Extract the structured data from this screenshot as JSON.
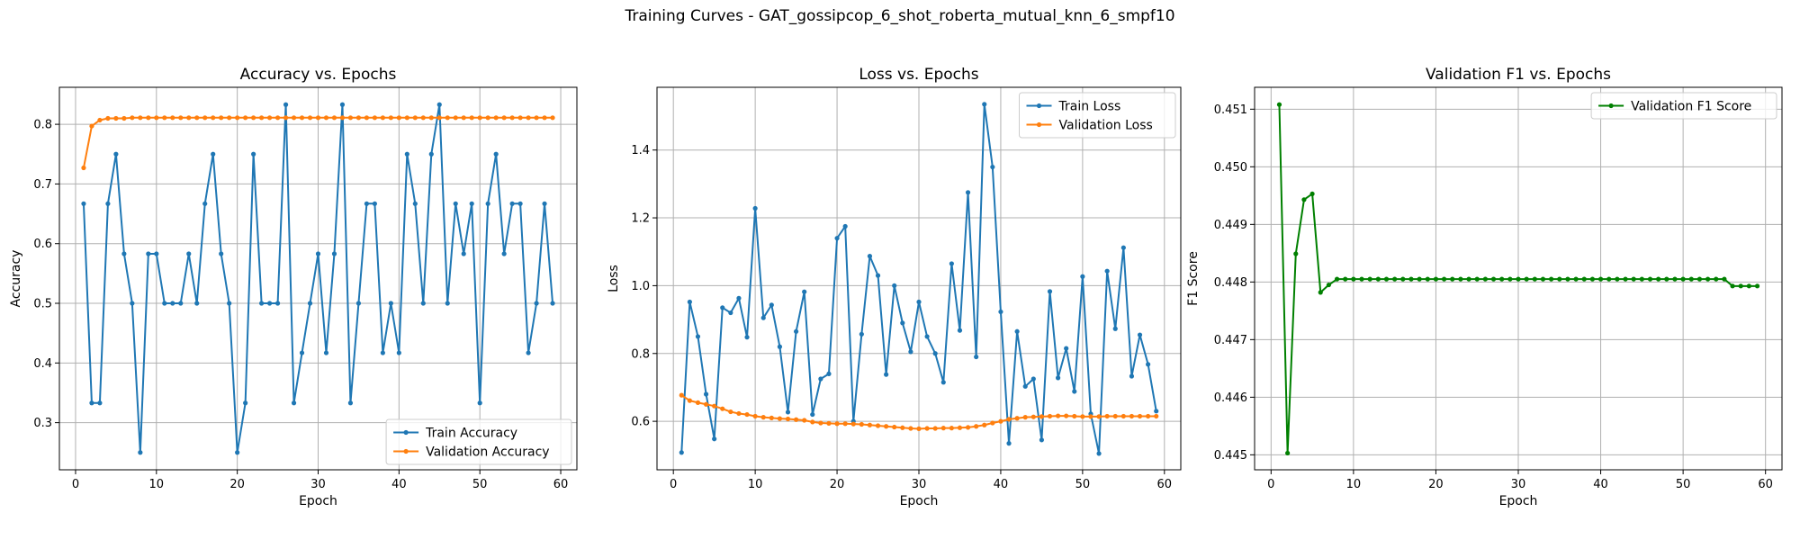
{
  "suptitle": "Training Curves - GAT_gossipcop_6_shot_roberta_mutual_knn_6_smpf10",
  "chart_data": [
    {
      "type": "line",
      "title": "Accuracy vs. Epochs",
      "xlabel": "Epoch",
      "ylabel": "Accuracy",
      "xlim": [
        -2,
        62
      ],
      "ylim": [
        0.221,
        0.862
      ],
      "xticks": [
        0,
        10,
        20,
        30,
        40,
        50,
        60
      ],
      "yticks": [
        0.3,
        0.4,
        0.5,
        0.6,
        0.7,
        0.8
      ],
      "ytick_decimals": 1,
      "grid": true,
      "legend": "lower-right",
      "x_start": 1,
      "series": [
        {
          "name": "Train Accuracy",
          "color": "#1f77b4",
          "values": [
            0.667,
            0.333,
            0.333,
            0.667,
            0.75,
            0.583,
            0.5,
            0.25,
            0.583,
            0.583,
            0.5,
            0.5,
            0.5,
            0.583,
            0.5,
            0.667,
            0.75,
            0.583,
            0.5,
            0.25,
            0.333,
            0.75,
            0.5,
            0.5,
            0.5,
            0.833,
            0.333,
            0.417,
            0.5,
            0.583,
            0.417,
            0.583,
            0.833,
            0.333,
            0.5,
            0.667,
            0.667,
            0.417,
            0.5,
            0.417,
            0.75,
            0.667,
            0.5,
            0.75,
            0.833,
            0.5,
            0.667,
            0.583,
            0.667,
            0.333,
            0.667,
            0.75,
            0.583,
            0.667,
            0.667,
            0.417,
            0.5,
            0.667,
            0.5
          ]
        },
        {
          "name": "Validation Accuracy",
          "color": "#ff7f0e",
          "values": [
            0.727,
            0.797,
            0.807,
            0.81,
            0.81,
            0.81,
            0.811,
            0.811,
            0.811,
            0.811,
            0.811,
            0.811,
            0.811,
            0.811,
            0.811,
            0.811,
            0.811,
            0.811,
            0.811,
            0.811,
            0.811,
            0.811,
            0.811,
            0.811,
            0.811,
            0.811,
            0.811,
            0.811,
            0.811,
            0.811,
            0.811,
            0.811,
            0.811,
            0.811,
            0.811,
            0.811,
            0.811,
            0.811,
            0.811,
            0.811,
            0.811,
            0.811,
            0.811,
            0.811,
            0.811,
            0.811,
            0.811,
            0.811,
            0.811,
            0.811,
            0.811,
            0.811,
            0.811,
            0.811,
            0.811,
            0.811,
            0.811,
            0.811,
            0.811
          ]
        }
      ]
    },
    {
      "type": "line",
      "title": "Loss vs. Epochs",
      "xlabel": "Epoch",
      "ylabel": "Loss",
      "xlim": [
        -2,
        62
      ],
      "ylim": [
        0.457,
        1.585
      ],
      "xticks": [
        0,
        10,
        20,
        30,
        40,
        50,
        60
      ],
      "yticks": [
        0.6,
        0.8,
        1.0,
        1.2,
        1.4
      ],
      "ytick_decimals": 1,
      "grid": true,
      "legend": "upper-right",
      "x_start": 1,
      "series": [
        {
          "name": "Train Loss",
          "color": "#1f77b4",
          "values": [
            0.508,
            0.952,
            0.85,
            0.68,
            0.548,
            0.935,
            0.92,
            0.963,
            0.848,
            1.228,
            0.905,
            0.943,
            0.82,
            0.627,
            0.865,
            0.982,
            0.62,
            0.725,
            0.74,
            1.14,
            1.175,
            0.6,
            0.857,
            1.087,
            1.03,
            0.738,
            1.0,
            0.89,
            0.805,
            0.952,
            0.85,
            0.8,
            0.715,
            1.065,
            0.868,
            1.275,
            0.79,
            1.535,
            1.35,
            0.923,
            0.535,
            0.865,
            0.703,
            0.725,
            0.545,
            0.983,
            0.728,
            0.815,
            0.688,
            1.027,
            0.622,
            0.505,
            1.043,
            0.873,
            1.112,
            0.733,
            0.855,
            0.768,
            0.63
          ]
        },
        {
          "name": "Validation Loss",
          "color": "#ff7f0e",
          "values": [
            0.677,
            0.661,
            0.655,
            0.65,
            0.645,
            0.637,
            0.628,
            0.623,
            0.62,
            0.615,
            0.612,
            0.61,
            0.608,
            0.607,
            0.605,
            0.603,
            0.598,
            0.595,
            0.594,
            0.593,
            0.593,
            0.592,
            0.591,
            0.589,
            0.587,
            0.585,
            0.583,
            0.581,
            0.579,
            0.578,
            0.579,
            0.579,
            0.58,
            0.58,
            0.581,
            0.582,
            0.585,
            0.589,
            0.595,
            0.6,
            0.606,
            0.609,
            0.612,
            0.613,
            0.614,
            0.615,
            0.616,
            0.616,
            0.615,
            0.614,
            0.614,
            0.614,
            0.615,
            0.615,
            0.615,
            0.615,
            0.615,
            0.615,
            0.615
          ]
        }
      ]
    },
    {
      "type": "line",
      "title": "Validation F1 vs. Epochs",
      "xlabel": "Epoch",
      "ylabel": "F1 Score",
      "xlim": [
        -2,
        62
      ],
      "ylim": [
        0.44474,
        0.45138
      ],
      "xticks": [
        0,
        10,
        20,
        30,
        40,
        50,
        60
      ],
      "yticks": [
        0.445,
        0.446,
        0.447,
        0.448,
        0.449,
        0.45,
        0.451
      ],
      "ytick_decimals": 3,
      "grid": true,
      "legend": "upper-right",
      "x_start": 1,
      "series": [
        {
          "name": "Validation F1 Score",
          "color": "#008000",
          "values": [
            0.45108,
            0.44503,
            0.44849,
            0.44943,
            0.44953,
            0.44782,
            0.44795,
            0.44805,
            0.44805,
            0.44805,
            0.44805,
            0.44805,
            0.44805,
            0.44805,
            0.44805,
            0.44805,
            0.44805,
            0.44805,
            0.44805,
            0.44805,
            0.44805,
            0.44805,
            0.44805,
            0.44805,
            0.44805,
            0.44805,
            0.44805,
            0.44805,
            0.44805,
            0.44805,
            0.44805,
            0.44805,
            0.44805,
            0.44805,
            0.44805,
            0.44805,
            0.44805,
            0.44805,
            0.44805,
            0.44805,
            0.44805,
            0.44805,
            0.44805,
            0.44805,
            0.44805,
            0.44805,
            0.44805,
            0.44805,
            0.44805,
            0.44805,
            0.44805,
            0.44805,
            0.44805,
            0.44805,
            0.44805,
            0.44793,
            0.44793,
            0.44793,
            0.44793
          ]
        }
      ]
    }
  ]
}
